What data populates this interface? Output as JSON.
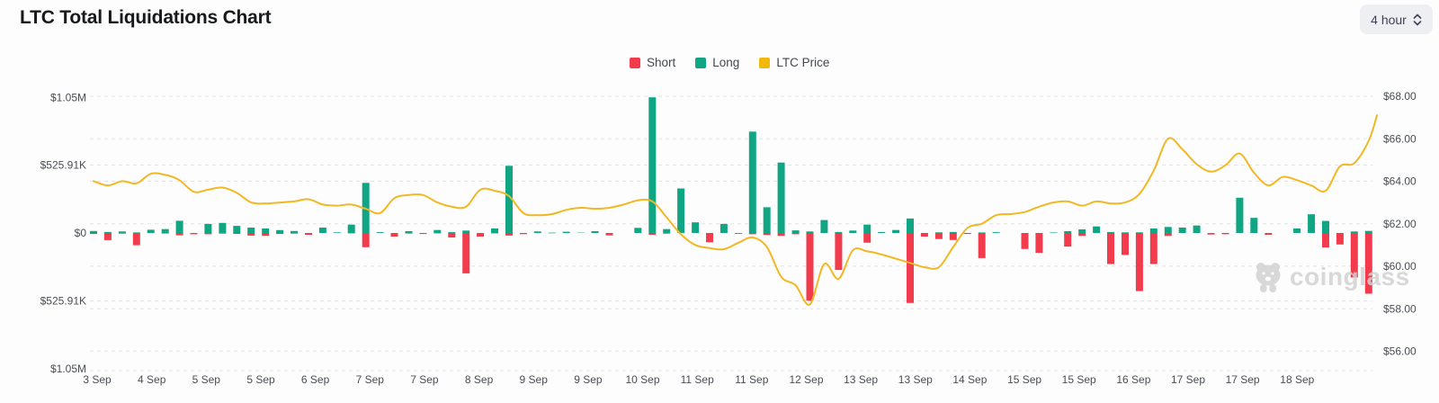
{
  "header": {
    "title": "LTC Total Liquidations Chart",
    "interval": "4 hour"
  },
  "legend": {
    "items": [
      {
        "label": "Short",
        "color": "#F23B4C"
      },
      {
        "label": "Long",
        "color": "#10A583"
      },
      {
        "label": "LTC Price",
        "color": "#F0B90B"
      }
    ]
  },
  "watermark": {
    "text": "coinglass"
  },
  "chart_data": {
    "type": "bar+line",
    "title": "LTC Total Liquidations Chart",
    "interval": "4 hour",
    "grid": true,
    "legend_position": "top-center",
    "colors": {
      "short": "#F23B4C",
      "long": "#10A583",
      "price": "#F2B824",
      "grid": "#e3e3e5"
    },
    "left_axis": {
      "unit": "USD liquidations (mirrored axis)",
      "ticks": [
        {
          "label": "$1.05M",
          "value_k": 1050
        },
        {
          "label": "$525.91K",
          "value_k": 525.91
        },
        {
          "label": "$0",
          "value_k": 0
        },
        {
          "label": "$525.91K",
          "value_k": -525.91
        },
        {
          "label": "$1.05M",
          "value_k": -1050
        }
      ],
      "grid_values_k": [
        525.91,
        -525.91
      ]
    },
    "right_axis": {
      "unit": "LTC price USD",
      "range": [
        56,
        68
      ],
      "ticks": [
        {
          "label": "$68.00",
          "value": 68
        },
        {
          "label": "$66.00",
          "value": 66
        },
        {
          "label": "$64.00",
          "value": 64
        },
        {
          "label": "$62.00",
          "value": 62
        },
        {
          "label": "$60.00",
          "value": 60
        },
        {
          "label": "$58.00",
          "value": 58
        },
        {
          "label": "$56.00",
          "value": 56
        }
      ]
    },
    "x_labels": [
      "3 Sep",
      "4 Sep",
      "5 Sep",
      "5 Sep",
      "6 Sep",
      "7 Sep",
      "7 Sep",
      "8 Sep",
      "9 Sep",
      "9 Sep",
      "10 Sep",
      "11 Sep",
      "11 Sep",
      "12 Sep",
      "13 Sep",
      "13 Sep",
      "14 Sep",
      "15 Sep",
      "15 Sep",
      "16 Sep",
      "17 Sep",
      "17 Sep",
      "18 Sep"
    ],
    "bars_format": "[long_liquidation_K_usd_up, short_liquidation_K_usd_down] per 4h bar, 3 Sep to 18 Sep",
    "bars": [
      [
        15,
        8
      ],
      [
        8,
        55
      ],
      [
        12,
        5
      ],
      [
        4,
        95
      ],
      [
        25,
        0
      ],
      [
        30,
        4
      ],
      [
        95,
        18
      ],
      [
        0,
        10
      ],
      [
        70,
        10
      ],
      [
        78,
        5
      ],
      [
        55,
        8
      ],
      [
        42,
        20
      ],
      [
        35,
        22
      ],
      [
        22,
        8
      ],
      [
        15,
        5
      ],
      [
        0,
        14
      ],
      [
        42,
        0
      ],
      [
        5,
        0
      ],
      [
        65,
        3
      ],
      [
        388,
        110
      ],
      [
        6,
        0
      ],
      [
        0,
        28
      ],
      [
        14,
        4
      ],
      [
        0,
        8
      ],
      [
        23,
        3
      ],
      [
        6,
        35
      ],
      [
        19,
        313
      ],
      [
        0,
        28
      ],
      [
        35,
        3
      ],
      [
        520,
        20
      ],
      [
        0,
        9
      ],
      [
        12,
        0
      ],
      [
        3,
        2
      ],
      [
        10,
        0
      ],
      [
        3,
        0
      ],
      [
        14,
        0
      ],
      [
        0,
        19
      ],
      [
        0,
        0
      ],
      [
        40,
        0
      ],
      [
        1050,
        14
      ],
      [
        30,
        5
      ],
      [
        345,
        0
      ],
      [
        82,
        0
      ],
      [
        0,
        72
      ],
      [
        70,
        0
      ],
      [
        0,
        6
      ],
      [
        785,
        10
      ],
      [
        199,
        15
      ],
      [
        545,
        23
      ],
      [
        20,
        10
      ],
      [
        12,
        525
      ],
      [
        100,
        0
      ],
      [
        8,
        286
      ],
      [
        19,
        0
      ],
      [
        65,
        75
      ],
      [
        8,
        0
      ],
      [
        23,
        0
      ],
      [
        112,
        542
      ],
      [
        0,
        28
      ],
      [
        5,
        47
      ],
      [
        8,
        54
      ],
      [
        0,
        8
      ],
      [
        4,
        194
      ],
      [
        6,
        0
      ],
      [
        0,
        0
      ],
      [
        0,
        124
      ],
      [
        0,
        154
      ],
      [
        4,
        0
      ],
      [
        14,
        105
      ],
      [
        28,
        23
      ],
      [
        51,
        0
      ],
      [
        8,
        240
      ],
      [
        5,
        170
      ],
      [
        5,
        450
      ],
      [
        35,
        240
      ],
      [
        47,
        23
      ],
      [
        42,
        0
      ],
      [
        58,
        0
      ],
      [
        0,
        12
      ],
      [
        0,
        10
      ],
      [
        273,
        0
      ],
      [
        117,
        0
      ],
      [
        0,
        14
      ],
      [
        0,
        0
      ],
      [
        35,
        0
      ],
      [
        145,
        0
      ],
      [
        93,
        112
      ],
      [
        0,
        89
      ],
      [
        12,
        345
      ],
      [
        16,
        470
      ]
    ],
    "price_series_label": "LTC Price",
    "price": [
      64.0,
      63.8,
      64.0,
      63.9,
      64.35,
      64.3,
      64.05,
      63.5,
      63.6,
      63.7,
      63.45,
      63.0,
      62.95,
      63.0,
      63.05,
      63.15,
      62.9,
      62.85,
      62.9,
      62.7,
      62.5,
      63.2,
      63.35,
      63.35,
      63.0,
      62.8,
      62.8,
      63.6,
      63.55,
      63.3,
      62.5,
      62.4,
      62.45,
      62.65,
      62.75,
      62.7,
      62.75,
      62.9,
      63.1,
      63.05,
      62.3,
      61.5,
      61.0,
      60.85,
      60.8,
      61.1,
      61.35,
      60.9,
      59.5,
      59.1,
      58.2,
      60.1,
      59.4,
      60.75,
      60.7,
      60.55,
      60.35,
      60.15,
      59.95,
      59.95,
      60.9,
      61.8,
      62.0,
      62.4,
      62.45,
      62.55,
      62.8,
      63.0,
      63.05,
      62.85,
      63.05,
      62.95,
      63.0,
      63.4,
      64.5,
      66.0,
      65.5,
      64.8,
      64.45,
      64.75,
      65.3,
      64.4,
      63.8,
      64.2,
      64.05,
      63.8,
      63.55,
      64.7,
      64.85,
      65.9,
      67.1
    ]
  }
}
